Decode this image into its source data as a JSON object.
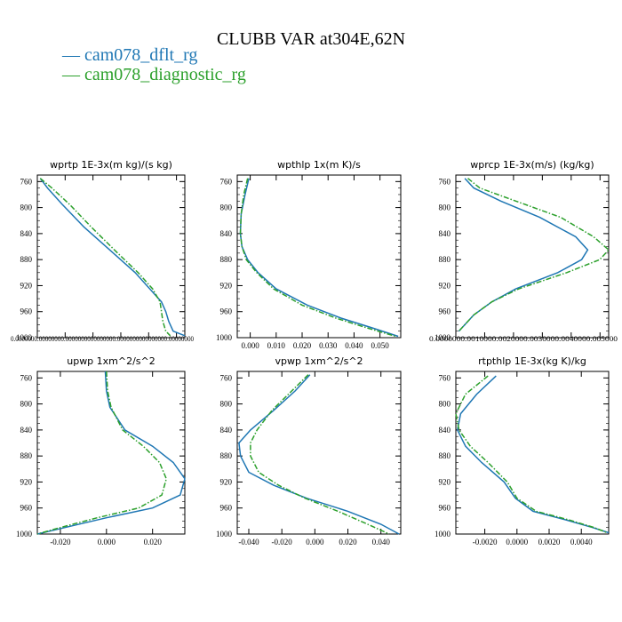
{
  "title": "CLUBB VAR at304E,62N",
  "legend": [
    {
      "label": "cam078_dflt_rg",
      "color": "#1f77b4",
      "dash": false
    },
    {
      "label": "cam078_diagnostic_rg",
      "color": "#2ca02c",
      "dash": true
    }
  ],
  "chart_data": [
    {
      "type": "line",
      "title": "wprtp  1E-3x(m kg)/(s kg)",
      "ylim": [
        1000,
        750
      ],
      "yticks": [
        760,
        800,
        840,
        880,
        920,
        960,
        1000
      ],
      "xlim": [
        3e-07,
        1.04e-05
      ],
      "xtick_text": "0.0000000.00000000.0000000000000000.0000000000000000.00000000",
      "series": [
        {
          "name": "cam078_dflt_rg",
          "x": [
            5e-07,
            1e-06,
            2e-06,
            3.5e-06,
            5.5e-06,
            7e-06,
            8e-06,
            8.8e-06,
            9.1e-06,
            9.3e-06,
            9.6e-06,
            1.04e-05
          ],
          "y": [
            755,
            770,
            795,
            830,
            870,
            900,
            925,
            945,
            960,
            975,
            990,
            997
          ]
        },
        {
          "name": "cam078_diagnostic_rg",
          "x": [
            5e-07,
            1.3e-06,
            2.5e-06,
            4e-06,
            5.8e-06,
            7.2e-06,
            8.2e-06,
            8.7e-06,
            8.8e-06,
            8.9e-06,
            9.1e-06,
            9.4e-06
          ],
          "y": [
            755,
            770,
            795,
            830,
            870,
            900,
            925,
            945,
            960,
            975,
            990,
            997
          ]
        }
      ]
    },
    {
      "type": "line",
      "title": "wpthlp  1x(m K)/s",
      "ylim": [
        1000,
        750
      ],
      "yticks": [
        760,
        800,
        840,
        880,
        920,
        960,
        1000
      ],
      "xlim": [
        -0.005,
        0.058
      ],
      "xticks": [
        0.0,
        0.01,
        0.02,
        0.03,
        0.04,
        0.05
      ],
      "xticklabels": [
        "0.000",
        "0.010",
        "0.020",
        "0.030",
        "0.040",
        "0.050"
      ],
      "series": [
        {
          "name": "cam078_dflt_rg",
          "x": [
            -0.0005,
            -0.002,
            -0.0035,
            -0.0038,
            -0.0032,
            -0.001,
            0.003,
            0.01,
            0.022,
            0.035,
            0.047,
            0.057
          ],
          "y": [
            755,
            780,
            810,
            840,
            860,
            880,
            900,
            925,
            950,
            970,
            985,
            998
          ]
        },
        {
          "name": "cam078_diagnostic_rg",
          "x": [
            -0.001,
            -0.0025,
            -0.0035,
            -0.0038,
            -0.0032,
            -0.0015,
            0.0025,
            0.009,
            0.02,
            0.033,
            0.045,
            0.056
          ],
          "y": [
            755,
            780,
            810,
            840,
            860,
            880,
            900,
            925,
            950,
            970,
            985,
            998
          ]
        }
      ]
    },
    {
      "type": "line",
      "title": "wprcp  1E-3x(m/s) (kg/kg)",
      "ylim": [
        1000,
        750
      ],
      "yticks": [
        760,
        800,
        840,
        880,
        920,
        960,
        1000
      ],
      "xlim": [
        0.0,
        0.0051
      ],
      "xtick_text": "0.0000000.0010000.0020000.0030000.0040000.005000",
      "series": [
        {
          "name": "cam078_dflt_rg",
          "x": [
            0.0003,
            0.0006,
            0.0015,
            0.0028,
            0.004,
            0.0044,
            0.0042,
            0.0034,
            0.002,
            0.0012,
            0.0006,
            0.0001
          ],
          "y": [
            755,
            770,
            790,
            815,
            845,
            865,
            880,
            900,
            925,
            945,
            965,
            990
          ]
        },
        {
          "name": "cam078_diagnostic_rg",
          "x": [
            0.0004,
            0.0008,
            0.002,
            0.0035,
            0.0046,
            0.0051,
            0.0048,
            0.0037,
            0.0021,
            0.0012,
            0.0006,
            0.0001
          ],
          "y": [
            755,
            770,
            790,
            815,
            845,
            865,
            880,
            900,
            925,
            945,
            965,
            990
          ]
        }
      ]
    },
    {
      "type": "line",
      "title": "upwp  1xm^2/s^2",
      "ylim": [
        1000,
        750
      ],
      "yticks": [
        760,
        800,
        840,
        880,
        920,
        960,
        1000
      ],
      "xlim": [
        -0.03,
        0.034
      ],
      "xticks": [
        -0.02,
        0.0,
        0.02
      ],
      "xticklabels": [
        "-0.020",
        "0.000",
        "0.020"
      ],
      "series": [
        {
          "name": "cam078_dflt_rg",
          "x": [
            -0.0005,
            0.0,
            0.0015,
            0.008,
            0.02,
            0.029,
            0.034,
            0.032,
            0.02,
            0.0,
            -0.018,
            -0.03
          ],
          "y": [
            750,
            780,
            805,
            840,
            865,
            890,
            915,
            940,
            960,
            975,
            990,
            1000
          ]
        },
        {
          "name": "cam078_diagnostic_rg",
          "x": [
            0.0,
            0.0005,
            0.002,
            0.007,
            0.016,
            0.023,
            0.026,
            0.024,
            0.014,
            -0.004,
            -0.02,
            -0.03
          ],
          "y": [
            750,
            780,
            805,
            840,
            865,
            890,
            915,
            940,
            960,
            975,
            990,
            1000
          ]
        }
      ]
    },
    {
      "type": "line",
      "title": "vpwp  1xm^2/s^2",
      "ylim": [
        1000,
        750
      ],
      "yticks": [
        760,
        800,
        840,
        880,
        920,
        960,
        1000
      ],
      "xlim": [
        -0.047,
        0.052
      ],
      "xticks": [
        -0.04,
        -0.02,
        0.0,
        0.02,
        0.04
      ],
      "xticklabels": [
        "-0.040",
        "-0.020",
        "0.000",
        "0.020",
        "0.040"
      ],
      "series": [
        {
          "name": "cam078_dflt_rg",
          "x": [
            -0.003,
            -0.012,
            -0.025,
            -0.039,
            -0.046,
            -0.045,
            -0.04,
            -0.025,
            -0.005,
            0.02,
            0.04,
            0.051
          ],
          "y": [
            755,
            780,
            810,
            840,
            860,
            880,
            905,
            925,
            945,
            965,
            985,
            1000
          ]
        },
        {
          "name": "cam078_diagnostic_rg",
          "x": [
            -0.004,
            -0.014,
            -0.026,
            -0.035,
            -0.039,
            -0.039,
            -0.034,
            -0.022,
            -0.006,
            0.014,
            0.032,
            0.045
          ],
          "y": [
            755,
            780,
            810,
            840,
            860,
            880,
            905,
            925,
            945,
            965,
            985,
            1000
          ]
        }
      ]
    },
    {
      "type": "line",
      "title": "rtpthlp  1E-3x(kg K)/kg",
      "ylim": [
        1000,
        750
      ],
      "yticks": [
        760,
        800,
        840,
        880,
        920,
        960,
        1000
      ],
      "xlim": [
        -0.0038,
        0.0057
      ],
      "xticks": [
        -0.002,
        0.0,
        0.002,
        0.004
      ],
      "xticklabels": [
        "-0.0020",
        "0.0000",
        "0.0020",
        "0.0040"
      ],
      "series": [
        {
          "name": "cam078_dflt_rg",
          "x": [
            -0.0013,
            -0.0025,
            -0.0035,
            -0.0037,
            -0.0032,
            -0.0022,
            -0.0008,
            -0.0001,
            0.001,
            0.003,
            0.0047,
            0.0057
          ],
          "y": [
            757,
            785,
            815,
            840,
            865,
            890,
            920,
            945,
            965,
            978,
            990,
            998
          ]
        },
        {
          "name": "cam078_diagnostic_rg",
          "x": [
            -0.0018,
            -0.0032,
            -0.0038,
            -0.0036,
            -0.0029,
            -0.0018,
            -0.0006,
            0.0,
            0.0012,
            0.0032,
            0.0048,
            0.0056
          ],
          "y": [
            757,
            785,
            815,
            840,
            865,
            890,
            920,
            945,
            965,
            978,
            990,
            998
          ]
        }
      ]
    }
  ]
}
